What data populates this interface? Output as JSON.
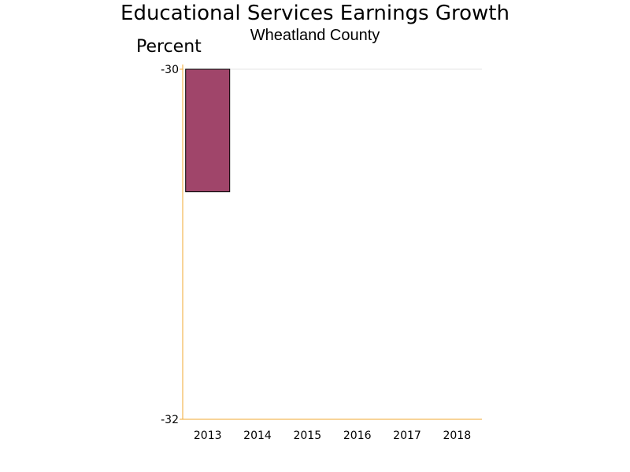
{
  "chart_data": {
    "type": "bar",
    "title": "Educational Services Earnings Growth",
    "subtitle": "Wheatland County",
    "ylabel": "Percent",
    "xlabel": "",
    "categories": [
      "2013",
      "2014",
      "2015",
      "2016",
      "2017",
      "2018"
    ],
    "values": [
      -30.7,
      null,
      null,
      null,
      null,
      null
    ],
    "ylim": [
      -32,
      -30
    ],
    "yticks": [
      "-30",
      "-32"
    ],
    "grid": false,
    "legend": "none",
    "colors": {
      "bar": "#a0456a",
      "bar_outline": "#000000",
      "axis": "#f0a830",
      "top_rule": "#e6e6e6"
    }
  }
}
